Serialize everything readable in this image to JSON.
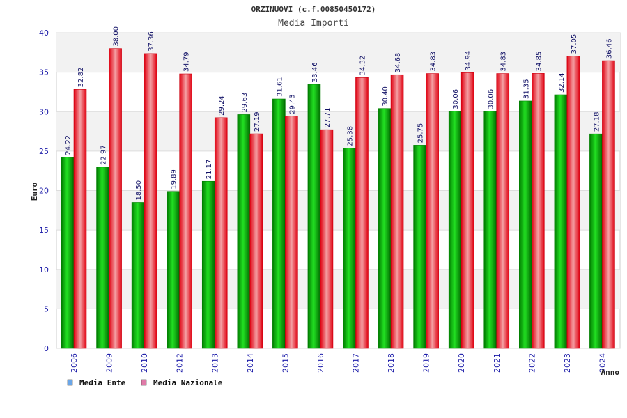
{
  "chart_data": {
    "type": "bar",
    "title": "ORZINUOVI (c.f.00850450172)",
    "subtitle": "Media Importi",
    "xlabel": "Anno",
    "ylabel": "Euro",
    "ylim": [
      0,
      40
    ],
    "yticks": [
      0,
      5,
      10,
      15,
      20,
      25,
      30,
      35,
      40
    ],
    "grid": true,
    "legend_position": "bottom-left",
    "categories": [
      "2006",
      "2009",
      "2010",
      "2012",
      "2013",
      "2014",
      "2015",
      "2016",
      "2017",
      "2018",
      "2019",
      "2020",
      "2021",
      "2022",
      "2023",
      "2024"
    ],
    "series": [
      {
        "name": "Media Ente",
        "color": "#00b000",
        "legend_color": "#6aa6e8",
        "values": [
          24.22,
          22.97,
          18.5,
          19.89,
          21.17,
          29.63,
          31.61,
          33.46,
          25.38,
          30.4,
          25.75,
          30.06,
          30.06,
          31.35,
          32.14,
          27.18
        ],
        "labels": [
          "24.22",
          "22.97",
          "18.50",
          "19.89",
          "21.17",
          "29.63",
          "31.61",
          "33.46",
          "25.38",
          "30.40",
          "25.75",
          "30.06",
          "30.06",
          "31.35",
          "32.14",
          "27.18"
        ]
      },
      {
        "name": "Media Nazionale",
        "color": "#e8101a",
        "legend_color": "#e07aa8",
        "values": [
          32.82,
          38.0,
          37.36,
          34.79,
          29.24,
          27.19,
          29.43,
          27.71,
          34.32,
          34.68,
          34.83,
          34.94,
          34.83,
          34.85,
          37.05,
          36.46
        ],
        "labels": [
          "32.82",
          "38.00",
          "37.36",
          "34.79",
          "29.24",
          "27.19",
          "29.43",
          "27.71",
          "34.32",
          "34.68",
          "34.83",
          "34.94",
          "34.83",
          "34.85",
          "37.05",
          "36.46"
        ]
      }
    ]
  }
}
